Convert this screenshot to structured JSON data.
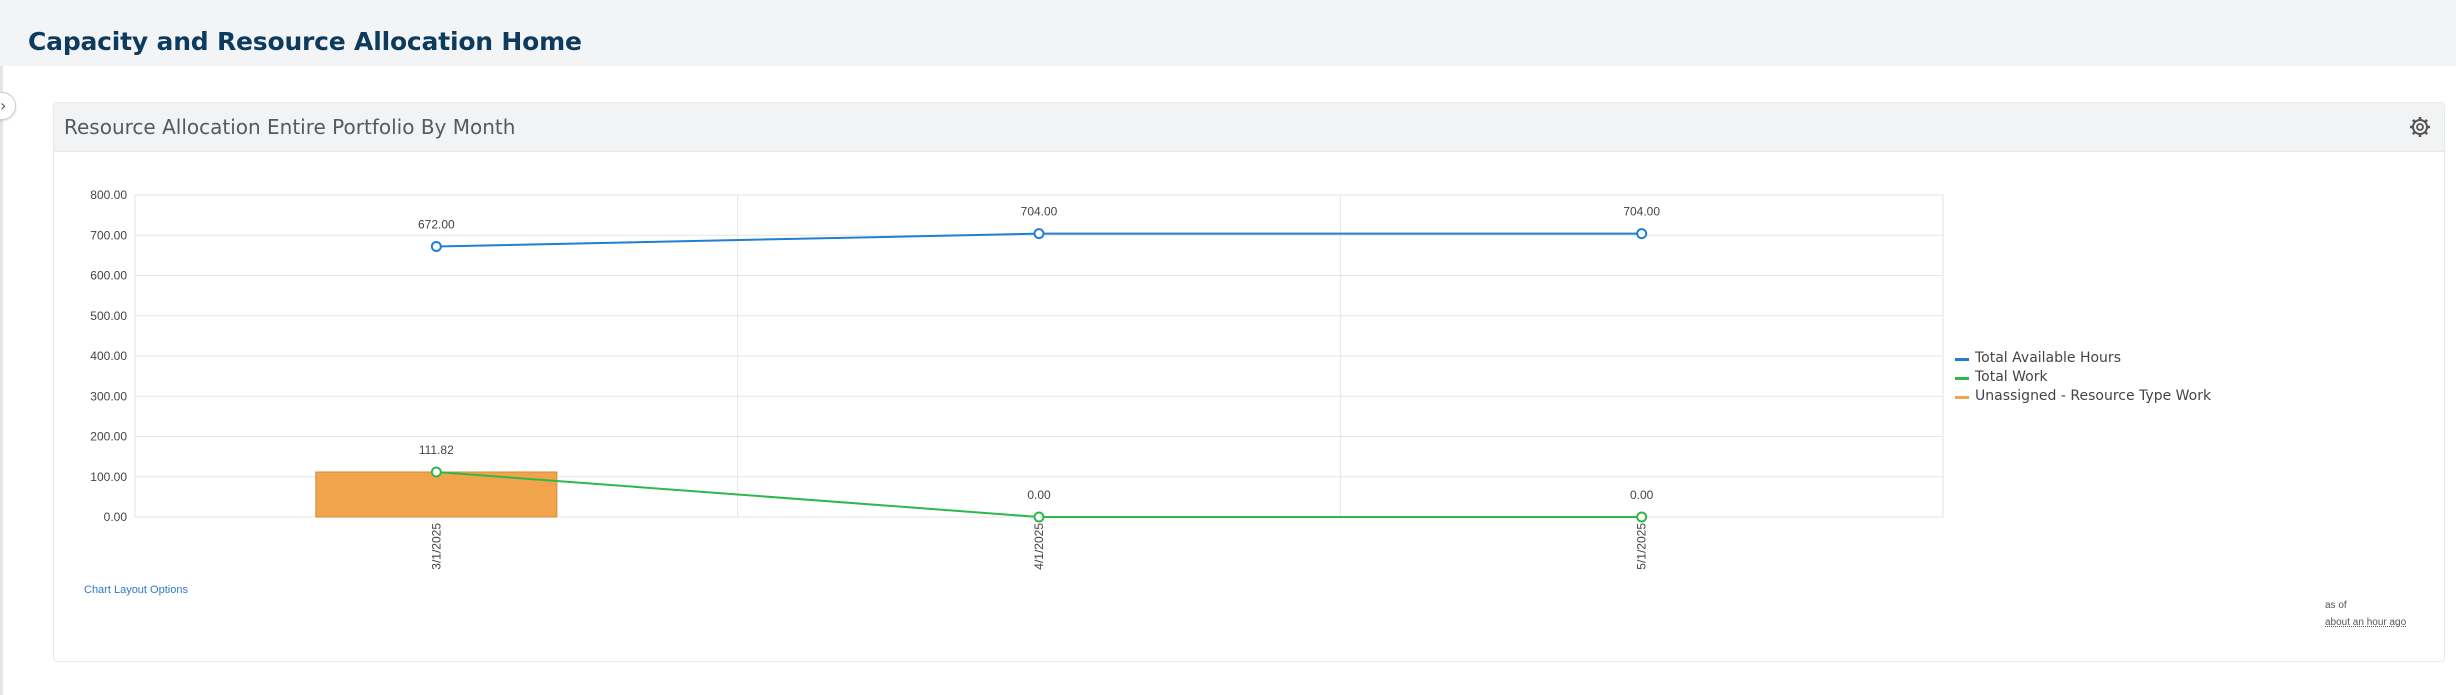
{
  "page": {
    "title": "Capacity and Resource Allocation Home"
  },
  "sidebar": {
    "toggle_icon": "›"
  },
  "card": {
    "title": "Resource Allocation Entire Portfolio By Month",
    "settings_icon": "gear-icon"
  },
  "footer": {
    "layout_link": "Chart Layout Options",
    "asof_label": "as of",
    "asof_time": "about an hour ago"
  },
  "chart_data": {
    "type": "bar",
    "categories": [
      "3/1/2025",
      "4/1/2025",
      "5/1/2025"
    ],
    "ylim": [
      0,
      800
    ],
    "yticks": [
      "800.00",
      "700.00",
      "600.00",
      "500.00",
      "400.00",
      "300.00",
      "200.00",
      "100.00",
      "0.00"
    ],
    "grid": true,
    "legend_position": "right",
    "series": [
      {
        "name": "Total Available Hours",
        "kind": "line",
        "color": "#1f7fd1",
        "values": [
          672.0,
          704.0,
          704.0
        ],
        "labels": [
          "672.00",
          "704.00",
          "704.00"
        ]
      },
      {
        "name": "Total Work",
        "kind": "line",
        "color": "#2eb84b",
        "values": [
          111.82,
          0.0,
          0.0
        ],
        "labels": [
          "111.82",
          "0.00",
          "0.00"
        ]
      },
      {
        "name": "Unassigned - Resource Type Work",
        "kind": "bar",
        "color": "#f2a44d",
        "values": [
          111.82,
          0,
          0
        ]
      }
    ]
  }
}
